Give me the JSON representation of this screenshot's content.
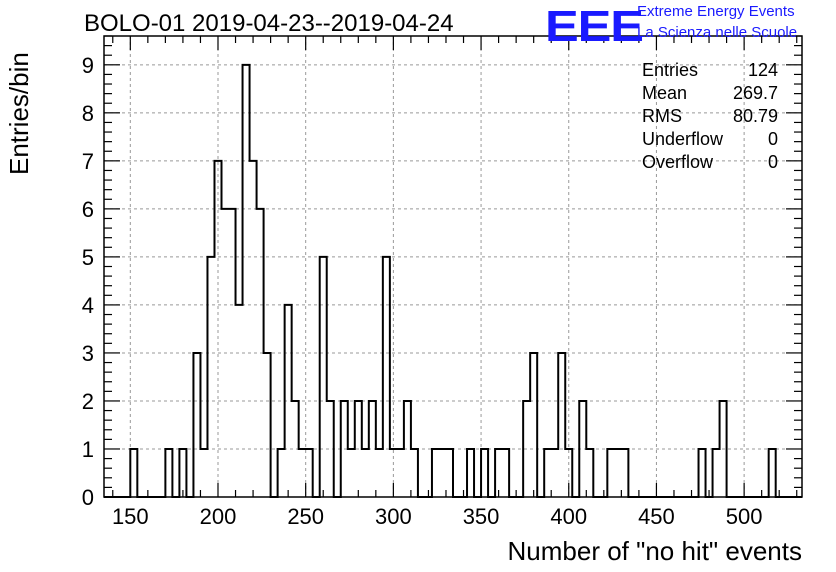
{
  "chart_data": {
    "type": "bar",
    "title": "BOLO-01 2019-04-23--2019-04-24",
    "xlabel": "Number of \"no hit\" events",
    "ylabel": "Entries/bin",
    "xlim": [
      135,
      533
    ],
    "ylim": [
      0,
      9.6
    ],
    "bin_width": 4,
    "x_ticks": [
      "150",
      "200",
      "250",
      "300",
      "350",
      "400",
      "450",
      "500"
    ],
    "y_ticks": [
      "0",
      "1",
      "2",
      "3",
      "4",
      "5",
      "6",
      "7",
      "8",
      "9"
    ],
    "grid": true,
    "bins": [
      {
        "x": 150,
        "y": 1
      },
      {
        "x": 170,
        "y": 1
      },
      {
        "x": 178,
        "y": 1
      },
      {
        "x": 186,
        "y": 3
      },
      {
        "x": 190,
        "y": 1
      },
      {
        "x": 194,
        "y": 5
      },
      {
        "x": 198,
        "y": 7
      },
      {
        "x": 202,
        "y": 6
      },
      {
        "x": 206,
        "y": 6
      },
      {
        "x": 210,
        "y": 4
      },
      {
        "x": 214,
        "y": 9
      },
      {
        "x": 218,
        "y": 7
      },
      {
        "x": 222,
        "y": 6
      },
      {
        "x": 226,
        "y": 3
      },
      {
        "x": 234,
        "y": 1
      },
      {
        "x": 238,
        "y": 4
      },
      {
        "x": 242,
        "y": 2
      },
      {
        "x": 246,
        "y": 1
      },
      {
        "x": 250,
        "y": 1
      },
      {
        "x": 258,
        "y": 5
      },
      {
        "x": 262,
        "y": 2
      },
      {
        "x": 270,
        "y": 2
      },
      {
        "x": 274,
        "y": 1
      },
      {
        "x": 278,
        "y": 2
      },
      {
        "x": 282,
        "y": 1
      },
      {
        "x": 286,
        "y": 2
      },
      {
        "x": 290,
        "y": 1
      },
      {
        "x": 294,
        "y": 5
      },
      {
        "x": 298,
        "y": 1
      },
      {
        "x": 302,
        "y": 1
      },
      {
        "x": 306,
        "y": 2
      },
      {
        "x": 310,
        "y": 1
      },
      {
        "x": 322,
        "y": 1
      },
      {
        "x": 326,
        "y": 1
      },
      {
        "x": 330,
        "y": 1
      },
      {
        "x": 342,
        "y": 1
      },
      {
        "x": 350,
        "y": 1
      },
      {
        "x": 358,
        "y": 1
      },
      {
        "x": 362,
        "y": 1
      },
      {
        "x": 374,
        "y": 2
      },
      {
        "x": 378,
        "y": 3
      },
      {
        "x": 386,
        "y": 1
      },
      {
        "x": 390,
        "y": 1
      },
      {
        "x": 394,
        "y": 3
      },
      {
        "x": 398,
        "y": 1
      },
      {
        "x": 406,
        "y": 2
      },
      {
        "x": 410,
        "y": 1
      },
      {
        "x": 422,
        "y": 1
      },
      {
        "x": 426,
        "y": 1
      },
      {
        "x": 430,
        "y": 1
      },
      {
        "x": 474,
        "y": 1
      },
      {
        "x": 482,
        "y": 1
      },
      {
        "x": 486,
        "y": 2
      },
      {
        "x": 514,
        "y": 1
      }
    ]
  },
  "stats": {
    "entries_label": "Entries",
    "entries_value": "124",
    "mean_label": "Mean",
    "mean_value": "269.7",
    "rms_label": "RMS",
    "rms_value": "80.79",
    "underflow_label": "Underflow",
    "underflow_value": "0",
    "overflow_label": "Overflow",
    "overflow_value": "0"
  },
  "logo": {
    "mark": "EEE",
    "line1": "Extreme Energy Events",
    "line2": "La Scienza nelle Scuole",
    "color": "#1a1aff"
  }
}
